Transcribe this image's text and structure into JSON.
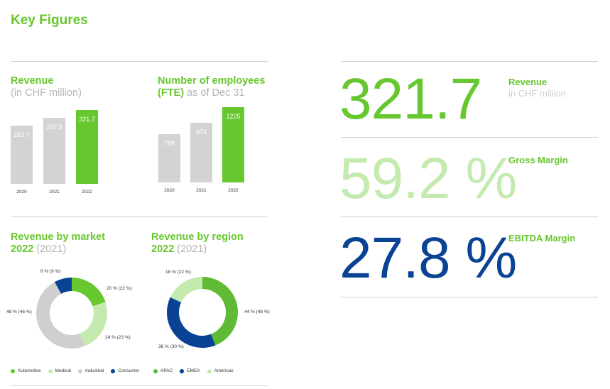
{
  "page_title": "Key Figures",
  "revenue_chart": {
    "title": "Revenue",
    "subtitle": "(in CHF million)"
  },
  "employees_chart": {
    "title_line1": "Number of employees",
    "title_line2_bold": "(FTE)",
    "title_line2_light": "as of Dec 31"
  },
  "kpis": [
    {
      "value": "321.7",
      "color": "#66c72e",
      "label": "Revenue",
      "sublabel": "in CHF million"
    },
    {
      "value": "59.2 %",
      "color": "#c5eab0",
      "label": "Gross Margin",
      "sublabel": ""
    },
    {
      "value": "27.8 %",
      "color": "#0b4394",
      "label": "EBITDA Margin",
      "sublabel": ""
    }
  ],
  "market_chart": {
    "title": "Revenue by market",
    "year": "2022",
    "prev_year": "(2021)"
  },
  "region_chart": {
    "title": "Revenue by region",
    "year": "2022",
    "prev_year": "(2021)"
  },
  "colors": {
    "green": "#66c72e",
    "light_green": "#c5eab0",
    "grey": "#cfcfcf",
    "blue": "#0b4394",
    "mid_green": "#5fbb35",
    "bar_grey": "#d3d3d3"
  },
  "chart_data": [
    {
      "type": "bar",
      "title": "Revenue",
      "subtitle": "(in CHF million)",
      "categories": [
        "2020",
        "2021",
        "2022"
      ],
      "values": [
        253.7,
        287.5,
        321.7
      ],
      "value_labels": [
        "253.7",
        "287.5",
        "321.7"
      ],
      "highlight_index": 2
    },
    {
      "type": "bar",
      "title": "Number of employees (FTE) as of Dec 31",
      "categories": [
        "2020",
        "2021",
        "2022"
      ],
      "values": [
        788,
        974,
        1225
      ],
      "value_labels": [
        "788",
        "974",
        "1225"
      ],
      "highlight_index": 2
    },
    {
      "type": "pie",
      "title": "Revenue by market 2022 (2021)",
      "labels": [
        "Automotive",
        "Medical",
        "Industrial",
        "Consumer"
      ],
      "values": [
        20,
        24,
        48,
        8
      ],
      "prev_values": [
        22,
        23,
        46,
        9
      ],
      "slice_labels": [
        "20 % (22 %)",
        "24 % (23 %)",
        "48 % (46 %)",
        "8 % (9 %)"
      ],
      "colors": [
        "#66c72e",
        "#c5eab0",
        "#cfcfcf",
        "#0b4394"
      ]
    },
    {
      "type": "pie",
      "title": "Revenue by region 2022 (2021)",
      "labels": [
        "APAC",
        "EMEA",
        "Americas"
      ],
      "values": [
        44,
        38,
        18
      ],
      "prev_values": [
        48,
        30,
        22
      ],
      "slice_labels": [
        "44 % (48 %)",
        "38 % (30 %)",
        "18 % (22 %)"
      ],
      "colors": [
        "#5fbb35",
        "#0b4394",
        "#c5eab0"
      ]
    }
  ]
}
